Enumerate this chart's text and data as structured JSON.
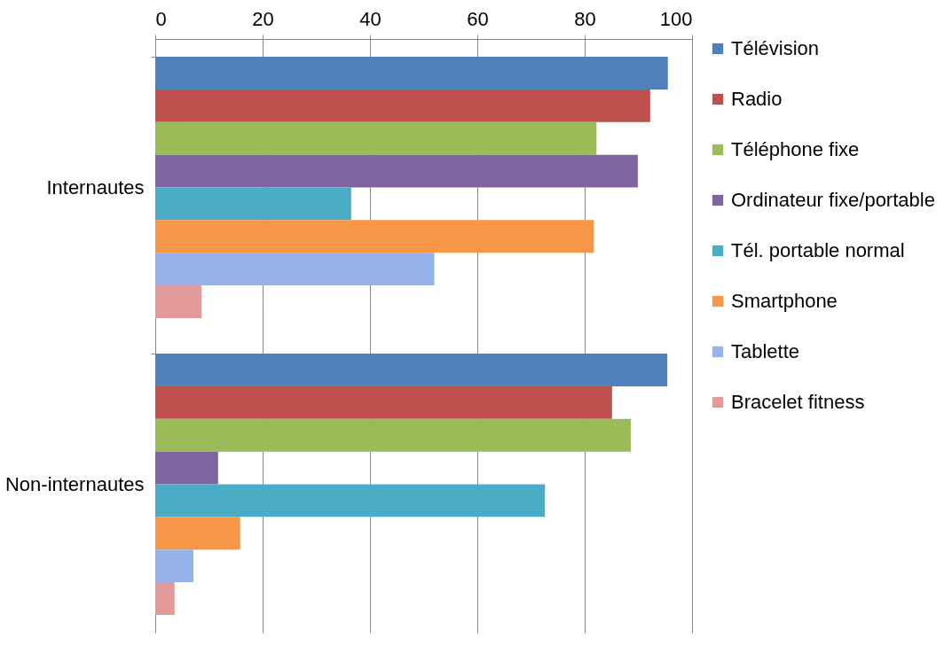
{
  "chart_data": {
    "type": "bar",
    "orientation": "horizontal",
    "categories": [
      "Internautes",
      "Non-internautes"
    ],
    "series": [
      {
        "name": "Télévision",
        "color": "#4f81bd",
        "values": [
          95.5,
          95.4
        ]
      },
      {
        "name": "Radio",
        "color": "#c0504d",
        "values": [
          92.2,
          85.1
        ]
      },
      {
        "name": "Téléphone fixe",
        "color": "#9bbb59",
        "values": [
          82.2,
          88.6
        ]
      },
      {
        "name": "Ordinateur fixe/portable",
        "color": "#8064a2",
        "values": [
          89.9,
          11.7
        ]
      },
      {
        "name": "Tél. portable normal",
        "color": "#4bacc6",
        "values": [
          36.5,
          72.6
        ]
      },
      {
        "name": "Smartphone",
        "color": "#f79646",
        "values": [
          81.7,
          15.8
        ]
      },
      {
        "name": "Tablette",
        "color": "#95b3e8",
        "values": [
          52.0,
          7.1
        ]
      },
      {
        "name": "Bracelet fitness",
        "color": "#e39a9a",
        "values": [
          8.6,
          3.6
        ]
      }
    ],
    "xlim": [
      0,
      100
    ],
    "xticks": [
      0,
      20,
      40,
      60,
      80,
      100
    ],
    "grid": "x",
    "legend": "right"
  }
}
